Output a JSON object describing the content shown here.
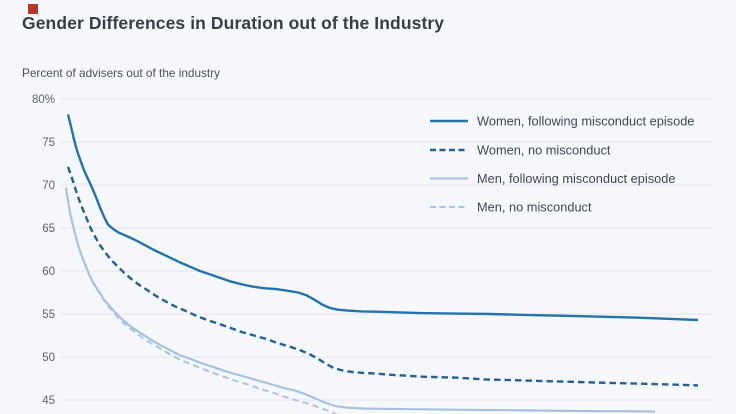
{
  "page": {
    "background_color": "#f5f7fa",
    "accent_square_color": "#b5382c"
  },
  "header": {
    "title": "Gender Differences in Duration out of the Industry"
  },
  "chart_data": {
    "type": "line",
    "title": "Gender Differences in Duration out of the Industry",
    "y_axis_label": "Percent of advisers out of the industry",
    "xlabel": "",
    "ylabel": "Percent of advisers out of the industry",
    "grid": true,
    "gridline_color": "#e2e6ec",
    "legend_position": "top-right",
    "ylim_visible": [
      43,
      80
    ],
    "x_axis_tick_labels": [],
    "y_ticks": [
      {
        "value": 80,
        "label": "80%"
      },
      {
        "value": 75,
        "label": "75"
      },
      {
        "value": 70,
        "label": "70"
      },
      {
        "value": 65,
        "label": "65"
      },
      {
        "value": 60,
        "label": "60"
      },
      {
        "value": 55,
        "label": "55"
      },
      {
        "value": 50,
        "label": "50"
      },
      {
        "value": 45,
        "label": "45"
      }
    ],
    "series": [
      {
        "name": "Women, following misconduct episode",
        "color": "#2472aa",
        "style": "solid",
        "width": 2.4,
        "points": [
          [
            68,
            78.2
          ],
          [
            71,
            76.8
          ],
          [
            74,
            75.3
          ],
          [
            77,
            74.0
          ],
          [
            80,
            73.0
          ],
          [
            84,
            71.7
          ],
          [
            88,
            70.7
          ],
          [
            92,
            69.7
          ],
          [
            96,
            68.6
          ],
          [
            100,
            67.4
          ],
          [
            104,
            66.3
          ],
          [
            108,
            65.4
          ],
          [
            113,
            64.9
          ],
          [
            118,
            64.5
          ],
          [
            124,
            64.2
          ],
          [
            130,
            63.9
          ],
          [
            137,
            63.5
          ],
          [
            145,
            63.0
          ],
          [
            153,
            62.5
          ],
          [
            162,
            62.0
          ],
          [
            171,
            61.5
          ],
          [
            180,
            61.0
          ],
          [
            190,
            60.5
          ],
          [
            200,
            60.0
          ],
          [
            210,
            59.6
          ],
          [
            220,
            59.2
          ],
          [
            230,
            58.8
          ],
          [
            240,
            58.5
          ],
          [
            252,
            58.2
          ],
          [
            264,
            58.0
          ],
          [
            276,
            57.9
          ],
          [
            288,
            57.7
          ],
          [
            298,
            57.5
          ],
          [
            306,
            57.2
          ],
          [
            314,
            56.7
          ],
          [
            322,
            56.1
          ],
          [
            330,
            55.7
          ],
          [
            338,
            55.5
          ],
          [
            348,
            55.4
          ],
          [
            362,
            55.3
          ],
          [
            385,
            55.25
          ],
          [
            420,
            55.1
          ],
          [
            455,
            55.05
          ],
          [
            490,
            55.0
          ],
          [
            525,
            54.9
          ],
          [
            560,
            54.8
          ],
          [
            595,
            54.7
          ],
          [
            630,
            54.6
          ],
          [
            665,
            54.45
          ],
          [
            698,
            54.3
          ]
        ]
      },
      {
        "name": "Women, no misconduct",
        "color": "#27608f",
        "style": "dashed",
        "width": 2.4,
        "points": [
          [
            68,
            72.1
          ],
          [
            72,
            70.8
          ],
          [
            75,
            69.7
          ],
          [
            79,
            68.3
          ],
          [
            83,
            67.1
          ],
          [
            87,
            66.0
          ],
          [
            91,
            64.9
          ],
          [
            95,
            64.0
          ],
          [
            100,
            63.0
          ],
          [
            105,
            62.2
          ],
          [
            111,
            61.3
          ],
          [
            117,
            60.6
          ],
          [
            124,
            59.8
          ],
          [
            131,
            59.1
          ],
          [
            139,
            58.4
          ],
          [
            147,
            57.8
          ],
          [
            156,
            57.1
          ],
          [
            165,
            56.5
          ],
          [
            175,
            55.9
          ],
          [
            185,
            55.4
          ],
          [
            196,
            54.8
          ],
          [
            207,
            54.3
          ],
          [
            218,
            53.9
          ],
          [
            230,
            53.4
          ],
          [
            242,
            52.9
          ],
          [
            254,
            52.5
          ],
          [
            266,
            52.1
          ],
          [
            278,
            51.6
          ],
          [
            290,
            51.2
          ],
          [
            300,
            50.8
          ],
          [
            310,
            50.3
          ],
          [
            318,
            49.8
          ],
          [
            326,
            49.2
          ],
          [
            334,
            48.7
          ],
          [
            344,
            48.4
          ],
          [
            356,
            48.2
          ],
          [
            372,
            48.1
          ],
          [
            395,
            47.9
          ],
          [
            425,
            47.7
          ],
          [
            455,
            47.6
          ],
          [
            485,
            47.4
          ],
          [
            515,
            47.3
          ],
          [
            545,
            47.2
          ],
          [
            575,
            47.1
          ],
          [
            605,
            47.0
          ],
          [
            640,
            46.9
          ],
          [
            670,
            46.8
          ],
          [
            698,
            46.7
          ]
        ]
      },
      {
        "name": "Men, following misconduct episode",
        "color": "#a7bedc",
        "style": "solid",
        "width": 2.1,
        "points": [
          [
            66,
            69.7
          ],
          [
            68,
            68.2
          ],
          [
            70,
            66.8
          ],
          [
            73,
            65.3
          ],
          [
            76,
            63.9
          ],
          [
            79,
            62.7
          ],
          [
            82,
            61.7
          ],
          [
            86,
            60.5
          ],
          [
            90,
            59.4
          ],
          [
            94,
            58.5
          ],
          [
            99,
            57.6
          ],
          [
            104,
            56.7
          ],
          [
            109,
            56.0
          ],
          [
            115,
            55.2
          ],
          [
            121,
            54.5
          ],
          [
            128,
            53.8
          ],
          [
            135,
            53.2
          ],
          [
            143,
            52.6
          ],
          [
            151,
            52.0
          ],
          [
            160,
            51.4
          ],
          [
            170,
            50.8
          ],
          [
            180,
            50.2
          ],
          [
            190,
            49.8
          ],
          [
            201,
            49.3
          ],
          [
            212,
            48.9
          ],
          [
            224,
            48.4
          ],
          [
            236,
            48.0
          ],
          [
            248,
            47.6
          ],
          [
            260,
            47.2
          ],
          [
            272,
            46.8
          ],
          [
            284,
            46.4
          ],
          [
            295,
            46.1
          ],
          [
            305,
            45.7
          ],
          [
            315,
            45.2
          ],
          [
            325,
            44.7
          ],
          [
            335,
            44.3
          ],
          [
            347,
            44.1
          ],
          [
            365,
            44.0
          ],
          [
            400,
            43.95
          ],
          [
            440,
            43.9
          ],
          [
            480,
            43.85
          ],
          [
            520,
            43.8
          ],
          [
            560,
            43.75
          ],
          [
            600,
            43.7
          ],
          [
            630,
            43.7
          ],
          [
            655,
            43.65
          ]
        ]
      },
      {
        "name": "Men, no misconduct",
        "color": "#aec3de",
        "style": "dashed",
        "width": 2.0,
        "points": [
          [
            66,
            69.6
          ],
          [
            68,
            68.1
          ],
          [
            70,
            66.7
          ],
          [
            73,
            65.2
          ],
          [
            76,
            63.8
          ],
          [
            79,
            62.6
          ],
          [
            82,
            61.6
          ],
          [
            86,
            60.4
          ],
          [
            90,
            59.3
          ],
          [
            94,
            58.4
          ],
          [
            99,
            57.5
          ],
          [
            104,
            56.6
          ],
          [
            109,
            55.8
          ],
          [
            115,
            55.0
          ],
          [
            121,
            54.2
          ],
          [
            128,
            53.5
          ],
          [
            135,
            52.9
          ],
          [
            143,
            52.2
          ],
          [
            151,
            51.6
          ],
          [
            160,
            51.0
          ],
          [
            170,
            50.3
          ],
          [
            180,
            49.7
          ],
          [
            190,
            49.2
          ],
          [
            201,
            48.7
          ],
          [
            212,
            48.2
          ],
          [
            224,
            47.7
          ],
          [
            236,
            47.2
          ],
          [
            248,
            46.8
          ],
          [
            260,
            46.3
          ],
          [
            272,
            45.9
          ],
          [
            284,
            45.4
          ],
          [
            295,
            45.0
          ],
          [
            305,
            44.7
          ],
          [
            315,
            44.3
          ],
          [
            325,
            43.9
          ],
          [
            335,
            43.4
          ],
          [
            345,
            42.9
          ]
        ]
      }
    ],
    "legend": [
      {
        "label": "Women, following misconduct episode"
      },
      {
        "label": "Women, no misconduct"
      },
      {
        "label": "Men, following misconduct episode"
      },
      {
        "label": "Men, no misconduct"
      }
    ]
  }
}
